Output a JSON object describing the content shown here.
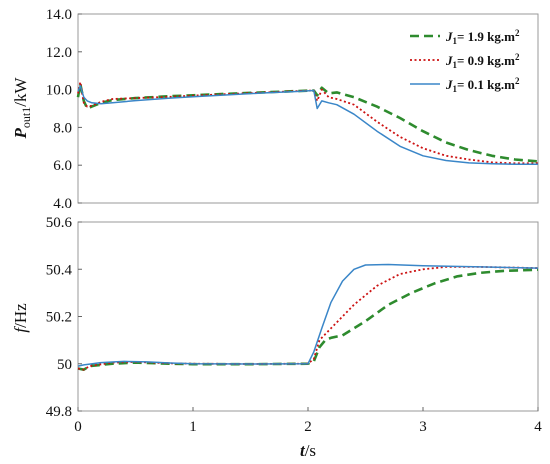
{
  "chart_data": [
    {
      "type": "line",
      "ylabel_main": "P",
      "ylabel_sub": "out1",
      "ylabel_unit": "/kW",
      "xlim": [
        0,
        4
      ],
      "ylim": [
        4.0,
        14.0
      ],
      "yticks": [
        "4.0",
        "6.0",
        "8.0",
        "10.0",
        "12.0",
        "14.0"
      ],
      "ytick_values": [
        4,
        6,
        8,
        10,
        12,
        14
      ],
      "legend": "top-right",
      "series": [
        {
          "name": "J1= 1.9 kg.m2",
          "legend_j": "J",
          "legend_sub": "1",
          "legend_text": "= 1.9 kg.m",
          "legend_sup": "2",
          "color": "#2e8b2e",
          "dash": "dashed",
          "points": [
            [
              0,
              9.6
            ],
            [
              0.02,
              10.3
            ],
            [
              0.05,
              9.4
            ],
            [
              0.08,
              9.0
            ],
            [
              0.12,
              9.1
            ],
            [
              0.2,
              9.3
            ],
            [
              0.3,
              9.45
            ],
            [
              0.5,
              9.55
            ],
            [
              0.8,
              9.65
            ],
            [
              1.0,
              9.7
            ],
            [
              1.3,
              9.78
            ],
            [
              1.6,
              9.85
            ],
            [
              1.9,
              9.92
            ],
            [
              2.05,
              9.95
            ],
            [
              2.08,
              9.7
            ],
            [
              2.12,
              10.1
            ],
            [
              2.18,
              9.8
            ],
            [
              2.25,
              9.85
            ],
            [
              2.4,
              9.6
            ],
            [
              2.6,
              9.1
            ],
            [
              2.8,
              8.5
            ],
            [
              3.0,
              7.8
            ],
            [
              3.2,
              7.2
            ],
            [
              3.4,
              6.8
            ],
            [
              3.6,
              6.5
            ],
            [
              3.8,
              6.3
            ],
            [
              4.0,
              6.2
            ]
          ]
        },
        {
          "name": "J1= 0.9 kg.m2",
          "legend_j": "J",
          "legend_sub": "1",
          "legend_text": "= 0.9 kg.m",
          "legend_sup": "2",
          "color": "#cc1111",
          "dash": "dotted",
          "points": [
            [
              0,
              9.8
            ],
            [
              0.02,
              10.4
            ],
            [
              0.05,
              9.3
            ],
            [
              0.08,
              9.1
            ],
            [
              0.12,
              9.15
            ],
            [
              0.2,
              9.35
            ],
            [
              0.3,
              9.5
            ],
            [
              0.5,
              9.55
            ],
            [
              0.8,
              9.62
            ],
            [
              1.0,
              9.68
            ],
            [
              1.3,
              9.76
            ],
            [
              1.6,
              9.84
            ],
            [
              1.9,
              9.92
            ],
            [
              2.05,
              9.95
            ],
            [
              2.08,
              9.4
            ],
            [
              2.12,
              10.0
            ],
            [
              2.18,
              9.6
            ],
            [
              2.25,
              9.5
            ],
            [
              2.4,
              9.2
            ],
            [
              2.6,
              8.3
            ],
            [
              2.8,
              7.5
            ],
            [
              3.0,
              6.9
            ],
            [
              3.2,
              6.5
            ],
            [
              3.4,
              6.3
            ],
            [
              3.6,
              6.15
            ],
            [
              3.8,
              6.1
            ],
            [
              4.0,
              6.1
            ]
          ]
        },
        {
          "name": "J1= 0.1 kg.m2",
          "legend_j": "J",
          "legend_sub": "1",
          "legend_text": "= 0.1 kg.m",
          "legend_sup": "2",
          "color": "#3a86c8",
          "dash": "solid",
          "points": [
            [
              0,
              9.9
            ],
            [
              0.02,
              10.2
            ],
            [
              0.05,
              9.6
            ],
            [
              0.08,
              9.4
            ],
            [
              0.12,
              9.3
            ],
            [
              0.2,
              9.25
            ],
            [
              0.3,
              9.3
            ],
            [
              0.5,
              9.42
            ],
            [
              0.8,
              9.55
            ],
            [
              1.0,
              9.62
            ],
            [
              1.3,
              9.72
            ],
            [
              1.6,
              9.82
            ],
            [
              1.9,
              9.9
            ],
            [
              2.05,
              9.95
            ],
            [
              2.08,
              9.0
            ],
            [
              2.12,
              9.4
            ],
            [
              2.18,
              9.3
            ],
            [
              2.25,
              9.2
            ],
            [
              2.4,
              8.7
            ],
            [
              2.6,
              7.8
            ],
            [
              2.8,
              7.0
            ],
            [
              3.0,
              6.5
            ],
            [
              3.2,
              6.25
            ],
            [
              3.4,
              6.12
            ],
            [
              3.6,
              6.08
            ],
            [
              3.8,
              6.05
            ],
            [
              4.0,
              6.05
            ]
          ]
        }
      ]
    },
    {
      "type": "line",
      "ylabel_main": "f",
      "ylabel_unit": "/Hz",
      "xlabel_main": "t",
      "xlabel_unit": "/s",
      "xlim": [
        0,
        4
      ],
      "ylim": [
        49.8,
        50.6
      ],
      "xticks": [
        "0",
        "1",
        "2",
        "3",
        "4"
      ],
      "xtick_values": [
        0,
        1,
        2,
        3,
        4
      ],
      "yticks": [
        "49.8",
        "50",
        "50.2",
        "50.4",
        "50.6"
      ],
      "ytick_values": [
        49.8,
        50.0,
        50.2,
        50.4,
        50.6
      ],
      "series": [
        {
          "color": "#2e8b2e",
          "dash": "dashed",
          "points": [
            [
              0,
              49.98
            ],
            [
              0.05,
              49.975
            ],
            [
              0.1,
              49.99
            ],
            [
              0.3,
              50.0
            ],
            [
              0.5,
              50.005
            ],
            [
              0.8,
              50.0
            ],
            [
              1.0,
              49.998
            ],
            [
              1.5,
              49.998
            ],
            [
              2.0,
              50.0
            ],
            [
              2.05,
              50.01
            ],
            [
              2.1,
              50.07
            ],
            [
              2.15,
              50.1
            ],
            [
              2.2,
              50.11
            ],
            [
              2.3,
              50.12
            ],
            [
              2.5,
              50.18
            ],
            [
              2.7,
              50.25
            ],
            [
              2.9,
              50.3
            ],
            [
              3.1,
              50.34
            ],
            [
              3.3,
              50.37
            ],
            [
              3.5,
              50.385
            ],
            [
              3.7,
              50.393
            ],
            [
              4.0,
              50.398
            ]
          ]
        },
        {
          "color": "#cc1111",
          "dash": "dotted",
          "points": [
            [
              0,
              49.98
            ],
            [
              0.05,
              49.975
            ],
            [
              0.1,
              49.99
            ],
            [
              0.3,
              50.005
            ],
            [
              0.5,
              50.008
            ],
            [
              0.8,
              50.002
            ],
            [
              1.0,
              50.0
            ],
            [
              1.5,
              49.999
            ],
            [
              2.0,
              50.0
            ],
            [
              2.05,
              50.02
            ],
            [
              2.1,
              50.1
            ],
            [
              2.2,
              50.15
            ],
            [
              2.4,
              50.25
            ],
            [
              2.6,
              50.33
            ],
            [
              2.8,
              50.38
            ],
            [
              3.0,
              50.4
            ],
            [
              3.2,
              50.41
            ],
            [
              3.5,
              50.41
            ],
            [
              4.0,
              50.405
            ]
          ]
        },
        {
          "color": "#3a86c8",
          "dash": "solid",
          "points": [
            [
              0,
              49.99
            ],
            [
              0.05,
              49.995
            ],
            [
              0.2,
              50.005
            ],
            [
              0.4,
              50.01
            ],
            [
              0.6,
              50.008
            ],
            [
              0.8,
              50.003
            ],
            [
              1.0,
              50.0
            ],
            [
              1.5,
              49.999
            ],
            [
              2.0,
              50.0
            ],
            [
              2.05,
              50.05
            ],
            [
              2.12,
              50.15
            ],
            [
              2.2,
              50.26
            ],
            [
              2.3,
              50.35
            ],
            [
              2.4,
              50.4
            ],
            [
              2.5,
              50.418
            ],
            [
              2.7,
              50.42
            ],
            [
              3.0,
              50.415
            ],
            [
              3.5,
              50.41
            ],
            [
              4.0,
              50.405
            ]
          ]
        }
      ]
    }
  ]
}
